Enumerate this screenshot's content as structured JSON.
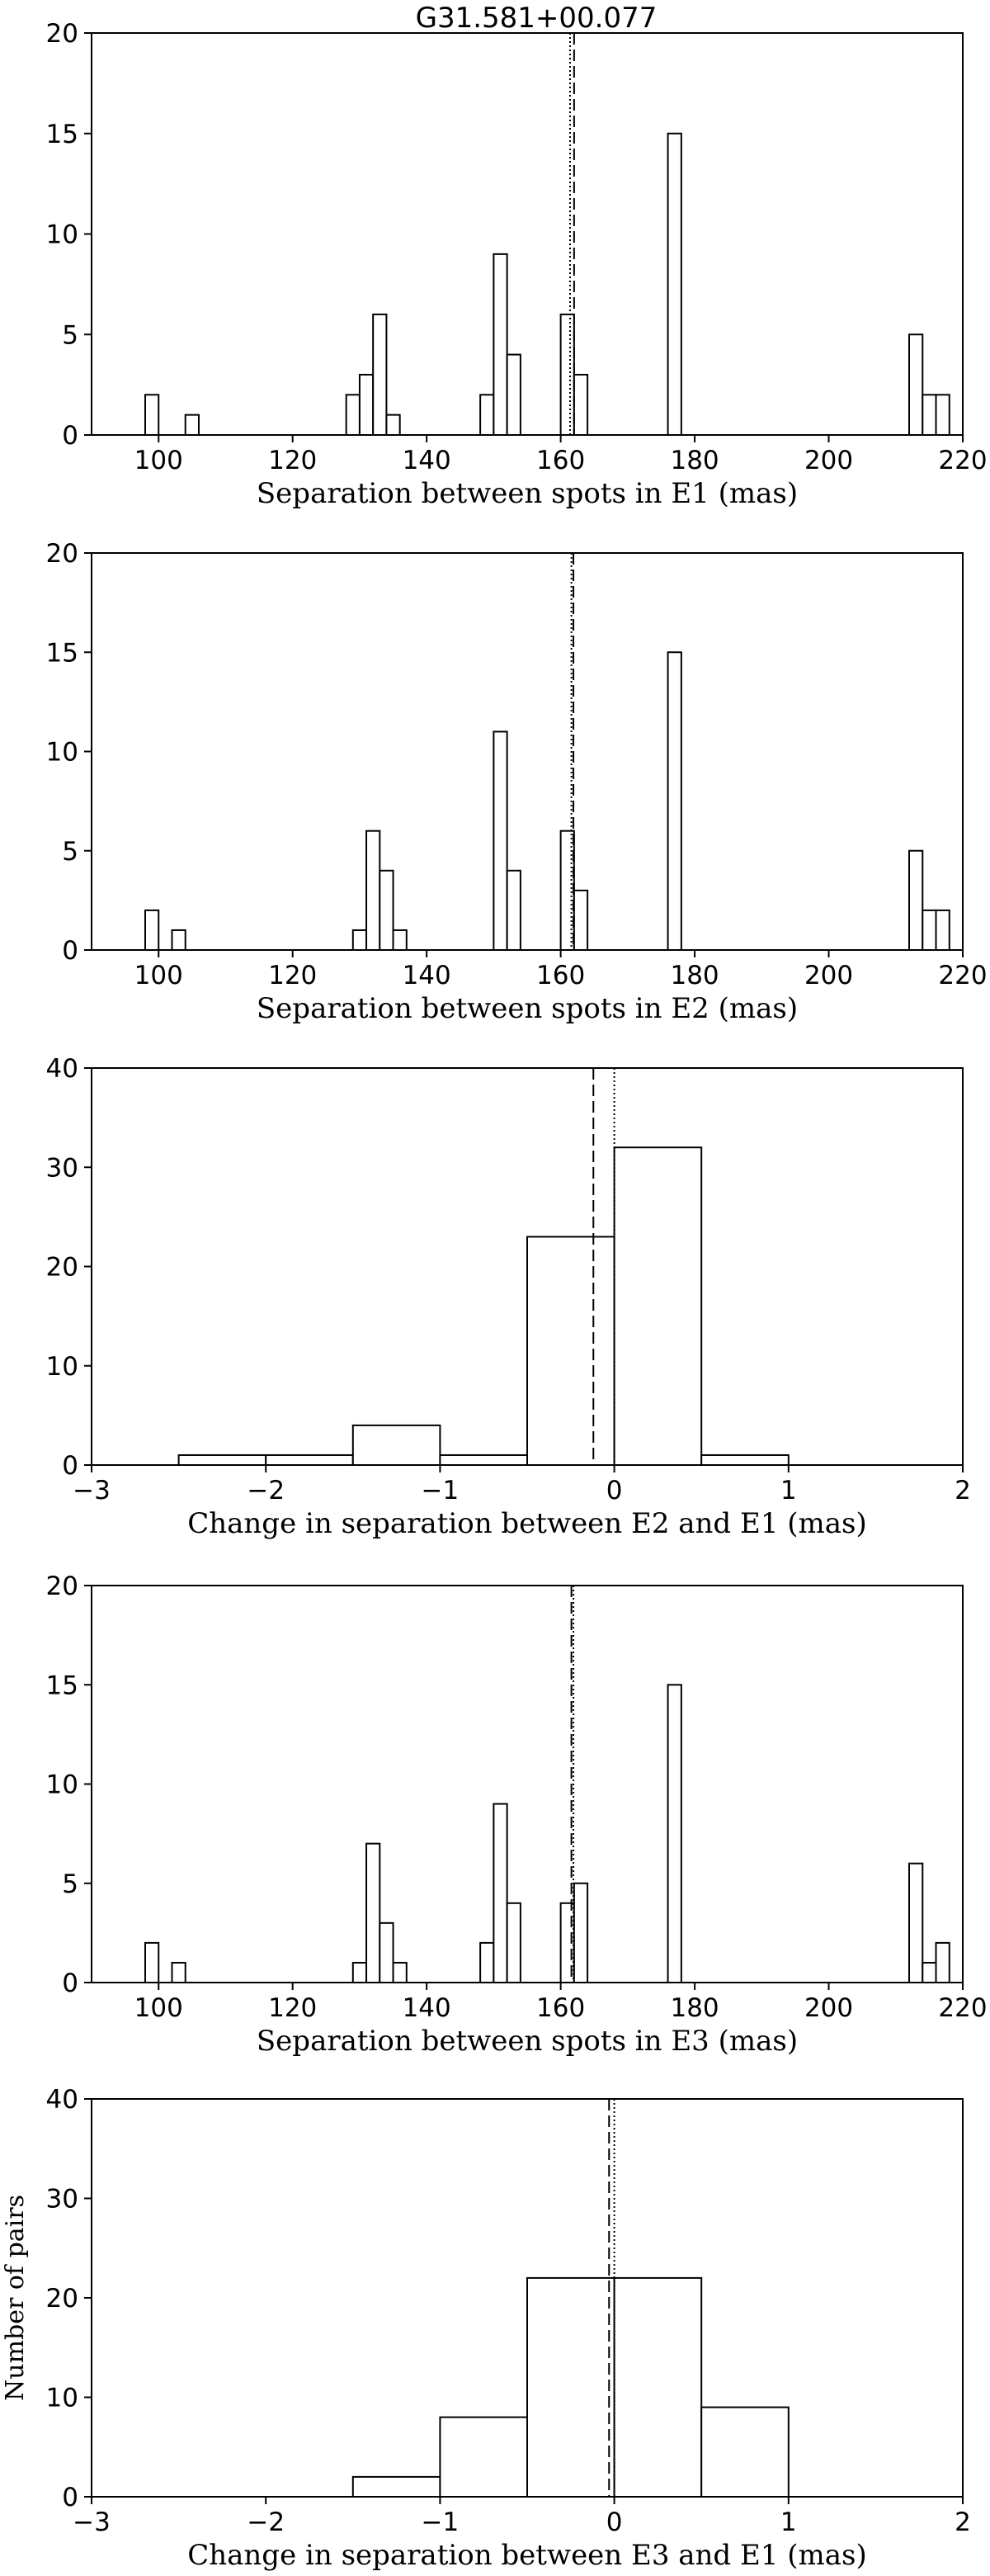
{
  "figure_title": "G31.581+00.077",
  "chart_data": [
    {
      "type": "bar",
      "xlabel": "Separation between spots in E1 (mas)",
      "ylabel": "",
      "xlim": [
        90,
        220
      ],
      "ylim": [
        0,
        20
      ],
      "xticks": [
        100,
        120,
        140,
        160,
        180,
        200,
        220
      ],
      "yticks": [
        0,
        5,
        10,
        15,
        20
      ],
      "bin_width": 2,
      "bins": [
        {
          "x0": 98,
          "count": 2
        },
        {
          "x0": 104,
          "count": 1
        },
        {
          "x0": 128,
          "count": 2
        },
        {
          "x0": 130,
          "count": 3
        },
        {
          "x0": 132,
          "count": 6
        },
        {
          "x0": 134,
          "count": 1
        },
        {
          "x0": 148,
          "count": 2
        },
        {
          "x0": 150,
          "count": 9
        },
        {
          "x0": 152,
          "count": 4
        },
        {
          "x0": 160,
          "count": 6
        },
        {
          "x0": 162,
          "count": 3
        },
        {
          "x0": 176,
          "count": 15
        },
        {
          "x0": 212,
          "count": 5
        },
        {
          "x0": 214,
          "count": 2
        },
        {
          "x0": 216,
          "count": 2
        }
      ],
      "vlines": [
        {
          "x": 161.4,
          "style": "dotted"
        },
        {
          "x": 162.0,
          "style": "dashed"
        }
      ]
    },
    {
      "type": "bar",
      "xlabel": "Separation between spots in E2 (mas)",
      "ylabel": "",
      "xlim": [
        90,
        220
      ],
      "ylim": [
        0,
        20
      ],
      "xticks": [
        100,
        120,
        140,
        160,
        180,
        200,
        220
      ],
      "yticks": [
        0,
        5,
        10,
        15,
        20
      ],
      "bin_width": 2,
      "bins": [
        {
          "x0": 98,
          "count": 2
        },
        {
          "x0": 102,
          "count": 1
        },
        {
          "x0": 129,
          "count": 1
        },
        {
          "x0": 131,
          "count": 6
        },
        {
          "x0": 133,
          "count": 4
        },
        {
          "x0": 135,
          "count": 1
        },
        {
          "x0": 150,
          "count": 11
        },
        {
          "x0": 152,
          "count": 4
        },
        {
          "x0": 160,
          "count": 6
        },
        {
          "x0": 162,
          "count": 3
        },
        {
          "x0": 176,
          "count": 15
        },
        {
          "x0": 212,
          "count": 5
        },
        {
          "x0": 214,
          "count": 2
        },
        {
          "x0": 216,
          "count": 2
        }
      ],
      "vlines": [
        {
          "x": 161.6,
          "style": "dotted"
        },
        {
          "x": 161.9,
          "style": "dashed"
        }
      ]
    },
    {
      "type": "bar",
      "xlabel": "Change in separation between E2 and E1 (mas)",
      "ylabel": "",
      "xlim": [
        -3,
        2
      ],
      "ylim": [
        0,
        40
      ],
      "xticks": [
        -3,
        -2,
        -1,
        0,
        1,
        2
      ],
      "xticklabels": [
        "−3",
        "−2",
        "−1",
        "0",
        "1",
        "2"
      ],
      "yticks": [
        0,
        10,
        20,
        30,
        40
      ],
      "bin_width": 0.5,
      "bins": [
        {
          "x0": -2.5,
          "count": 1
        },
        {
          "x0": -2.0,
          "count": 1
        },
        {
          "x0": -1.5,
          "count": 4
        },
        {
          "x0": -1.0,
          "count": 1
        },
        {
          "x0": -0.5,
          "count": 23
        },
        {
          "x0": 0.0,
          "count": 32
        },
        {
          "x0": 0.5,
          "count": 1
        }
      ],
      "vlines": [
        {
          "x": -0.12,
          "style": "dashed"
        },
        {
          "x": 0.0,
          "style": "dotted"
        }
      ]
    },
    {
      "type": "bar",
      "xlabel": "Separation between spots in E3 (mas)",
      "ylabel": "",
      "xlim": [
        90,
        220
      ],
      "ylim": [
        0,
        20
      ],
      "xticks": [
        100,
        120,
        140,
        160,
        180,
        200,
        220
      ],
      "yticks": [
        0,
        5,
        10,
        15,
        20
      ],
      "bin_width": 2,
      "bins": [
        {
          "x0": 98,
          "count": 2
        },
        {
          "x0": 102,
          "count": 1
        },
        {
          "x0": 129,
          "count": 1
        },
        {
          "x0": 131,
          "count": 7
        },
        {
          "x0": 133,
          "count": 3
        },
        {
          "x0": 135,
          "count": 1
        },
        {
          "x0": 148,
          "count": 2
        },
        {
          "x0": 150,
          "count": 9
        },
        {
          "x0": 152,
          "count": 4
        },
        {
          "x0": 160,
          "count": 4
        },
        {
          "x0": 162,
          "count": 5
        },
        {
          "x0": 176,
          "count": 15
        },
        {
          "x0": 212,
          "count": 6
        },
        {
          "x0": 214,
          "count": 1
        },
        {
          "x0": 216,
          "count": 2
        }
      ],
      "vlines": [
        {
          "x": 161.6,
          "style": "dashed"
        },
        {
          "x": 161.9,
          "style": "dotted"
        }
      ]
    },
    {
      "type": "bar",
      "xlabel": "Change in separation between E3 and E1 (mas)",
      "ylabel": "Number of pairs",
      "xlim": [
        -3,
        2
      ],
      "ylim": [
        0,
        40
      ],
      "xticks": [
        -3,
        -2,
        -1,
        0,
        1,
        2
      ],
      "xticklabels": [
        "−3",
        "−2",
        "−1",
        "0",
        "1",
        "2"
      ],
      "yticks": [
        0,
        10,
        20,
        30,
        40
      ],
      "bin_width": 0.5,
      "bins": [
        {
          "x0": -1.5,
          "count": 2
        },
        {
          "x0": -1.0,
          "count": 8
        },
        {
          "x0": -0.5,
          "count": 22
        },
        {
          "x0": 0.0,
          "count": 22
        },
        {
          "x0": 0.5,
          "count": 9
        }
      ],
      "vlines": [
        {
          "x": -0.03,
          "style": "dashed"
        },
        {
          "x": 0.0,
          "style": "dotted"
        }
      ]
    }
  ]
}
